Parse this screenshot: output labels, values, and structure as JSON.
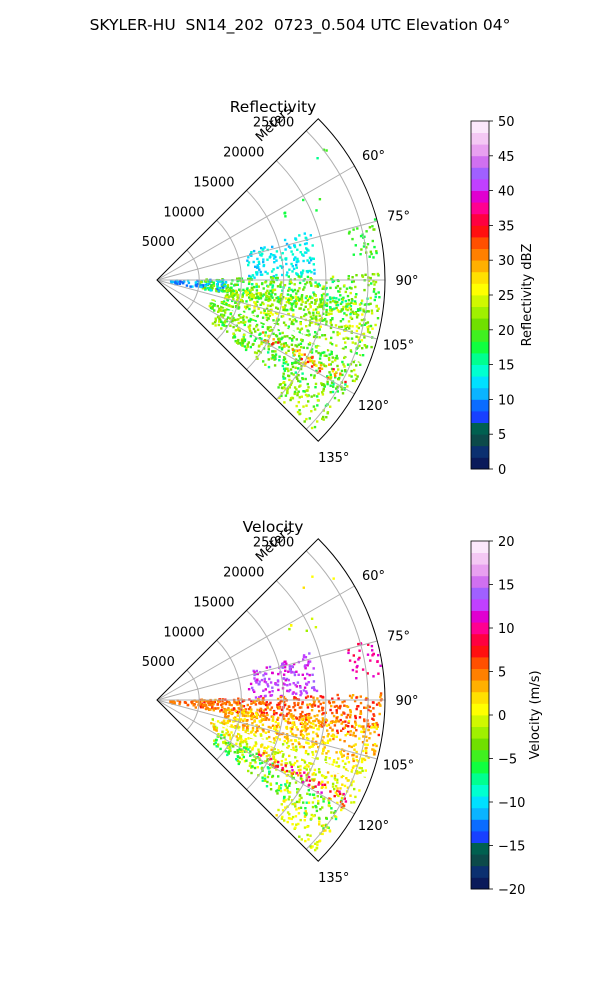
{
  "title": "SKYLER-HU  SN14_202  0723_0.504 UTC Elevation 04°",
  "chart_data": [
    {
      "type": "heatmap",
      "title": "Reflectivity",
      "projection": "polar sector",
      "radial_label": "Meters",
      "radial_ticks": [
        "5000",
        "10000",
        "15000",
        "20000",
        "25000"
      ],
      "radial_range": [
        0,
        27000
      ],
      "angle_ticks": [
        "60°",
        "75°",
        "90°",
        "105°",
        "120°",
        "135°"
      ],
      "angle_range_deg": [
        45,
        135
      ],
      "grid": true,
      "colorbar": {
        "label": "Reflectivity dBZ",
        "range": [
          0,
          50
        ],
        "ticks": [
          "0",
          "5",
          "10",
          "15",
          "20",
          "25",
          "30",
          "35",
          "40",
          "45",
          "50"
        ],
        "colors": [
          "#0a1a5a",
          "#0b3070",
          "#0c4a4a",
          "#006050",
          "#1840ff",
          "#0a6cff",
          "#0ab4ff",
          "#00e0ff",
          "#00ffd0",
          "#00ff90",
          "#10ff40",
          "#40f020",
          "#70e000",
          "#a0f000",
          "#d0f800",
          "#ffff00",
          "#ffe000",
          "#ffb000",
          "#ff8000",
          "#ff5000",
          "#ff1010",
          "#ff0040",
          "#ff0090",
          "#e000d0",
          "#c040ff",
          "#a060ff",
          "#d070f0",
          "#e8a0f0",
          "#f4c8f4",
          "#fbe8fb"
        ]
      }
    },
    {
      "type": "heatmap",
      "title": "Velocity",
      "projection": "polar sector",
      "radial_label": "Meters",
      "radial_ticks": [
        "5000",
        "10000",
        "15000",
        "20000",
        "25000"
      ],
      "radial_range": [
        0,
        27000
      ],
      "angle_ticks": [
        "60°",
        "75°",
        "90°",
        "105°",
        "120°",
        "135°"
      ],
      "angle_range_deg": [
        45,
        135
      ],
      "grid": true,
      "colorbar": {
        "label": "Velocity (m/s)",
        "range": [
          -20,
          20
        ],
        "ticks": [
          "−20",
          "−15",
          "−10",
          "−5",
          "0",
          "5",
          "10",
          "15",
          "20"
        ],
        "colors": [
          "#0a1a5a",
          "#0b3070",
          "#0c4a4a",
          "#006050",
          "#1840ff",
          "#0a6cff",
          "#0ab4ff",
          "#00e0ff",
          "#00ffd0",
          "#00ff90",
          "#10ff40",
          "#40f020",
          "#70e000",
          "#a0f000",
          "#d0f800",
          "#ffff00",
          "#ffe000",
          "#ffb000",
          "#ff8000",
          "#ff5000",
          "#ff1010",
          "#ff0040",
          "#ff0090",
          "#e000d0",
          "#c040ff",
          "#a060ff",
          "#d070f0",
          "#e8a0f0",
          "#f4c8f4",
          "#fbe8fb"
        ]
      }
    }
  ]
}
